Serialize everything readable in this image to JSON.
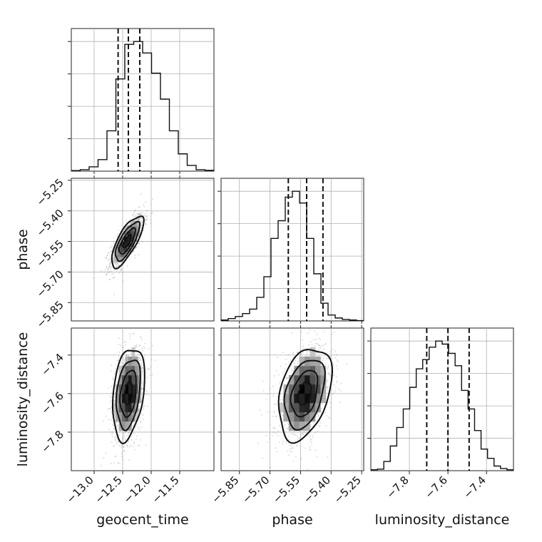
{
  "chart_data": [
    {
      "type": "histogram",
      "panel": "diag-geocent_time",
      "parameter": "geocent_time",
      "bin_range": [
        -13.4,
        -10.9
      ],
      "values": [
        0.2,
        0.5,
        1.5,
        4,
        14,
        32,
        44,
        45,
        41,
        34,
        25,
        14,
        6,
        2,
        0.5,
        0.3
      ],
      "quantiles": [
        -12.58,
        -12.4,
        -12.2
      ]
    },
    {
      "type": "histogram",
      "panel": "diag-phase",
      "parameter": "phase",
      "bin_range": [
        -5.94,
        -5.24
      ],
      "values": [
        0.3,
        0.8,
        1.5,
        2.5,
        4,
        8,
        15,
        28,
        34,
        42,
        44,
        40,
        28,
        16,
        6,
        2,
        1,
        0.5,
        0.3,
        0.1
      ],
      "quantiles": [
        -5.61,
        -5.52,
        -5.44
      ]
    },
    {
      "type": "histogram",
      "panel": "diag-luminosity_distance",
      "parameter": "luminosity_distance",
      "bin_range": [
        -8.0,
        -7.26
      ],
      "values": [
        0.3,
        0.5,
        3,
        8,
        14,
        20,
        27,
        33,
        36,
        40,
        42,
        41,
        38,
        34,
        26,
        20,
        13,
        7,
        4,
        1.5,
        0.7,
        0.3
      ],
      "quantiles": [
        -7.71,
        -7.6,
        -7.49
      ]
    },
    {
      "type": "scatter",
      "panel": "geocent_time-vs-phase",
      "x_parameter": "geocent_time",
      "y_parameter": "phase",
      "center": [
        -12.42,
        -5.55
      ],
      "sigma": [
        0.14,
        0.063
      ],
      "correlation": 0.75,
      "mode": [
        -12.45,
        -5.56
      ]
    },
    {
      "type": "scatter",
      "panel": "geocent_time-vs-luminosity_distance",
      "x_parameter": "geocent_time",
      "y_parameter": "luminosity_distance",
      "center": [
        -12.4,
        -7.6
      ],
      "sigma": [
        0.14,
        0.12
      ],
      "correlation": 0.3,
      "mode": [
        -12.45,
        -7.58
      ]
    },
    {
      "type": "scatter",
      "panel": "phase-vs-luminosity_distance",
      "x_parameter": "phase",
      "y_parameter": "luminosity_distance",
      "center": [
        -5.53,
        -7.6
      ],
      "sigma": [
        0.065,
        0.12
      ],
      "correlation": 0.35,
      "mode": [
        -5.53,
        -7.65
      ]
    }
  ],
  "axes": {
    "geocent_time": {
      "label": "geocent_time",
      "range": [
        -13.4,
        -10.9
      ],
      "ticks": [
        -13.0,
        -12.5,
        -12.0,
        -11.5
      ],
      "tick_labels": [
        "−13.0",
        "−12.5",
        "−12.0",
        "−11.5"
      ]
    },
    "phase": {
      "label": "phase",
      "range": [
        -5.94,
        -5.24
      ],
      "ticks": [
        -5.85,
        -5.7,
        -5.55,
        -5.4,
        -5.25
      ],
      "tick_labels": [
        "−5.85",
        "−5.70",
        "−5.55",
        "−5.40",
        "−5.25"
      ]
    },
    "luminosity_distance": {
      "label": "luminosity_distance",
      "range": [
        -8.0,
        -7.26
      ],
      "ticks": [
        -7.8,
        -7.6,
        -7.4
      ],
      "tick_labels": [
        "−7.8",
        "−7.6",
        "−7.4"
      ]
    }
  },
  "style": {
    "grid": true,
    "line_color": "#111111",
    "grid_color": "#b0b0b0",
    "scatter_color": "#888888",
    "colormap": "greys"
  }
}
